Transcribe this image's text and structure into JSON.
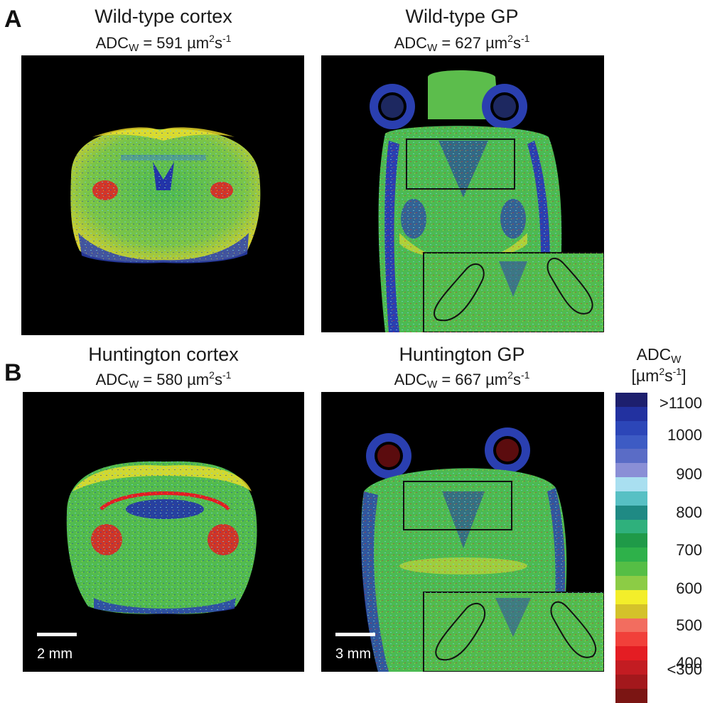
{
  "figure": {
    "panel_a_letter": "A",
    "panel_b_letter": "B",
    "panels": [
      {
        "title": "Wild-type cortex",
        "adc_prefix": "ADC",
        "adc_sub": "W",
        "adc_mid": " = 591 µm",
        "adc_sup1": "2",
        "adc_s": "s",
        "adc_sup2": "-1"
      },
      {
        "title": "Wild-type GP",
        "adc_prefix": "ADC",
        "adc_sub": "W",
        "adc_mid": " = 627 µm",
        "adc_sup1": "2",
        "adc_s": "s",
        "adc_sup2": "-1"
      },
      {
        "title": "Huntington cortex",
        "adc_prefix": "ADC",
        "adc_sub": "W",
        "adc_mid": " = 580 µm",
        "adc_sup1": "2",
        "adc_s": "s",
        "adc_sup2": "-1"
      },
      {
        "title": "Huntington GP",
        "adc_prefix": "ADC",
        "adc_sub": "W",
        "adc_mid": " = 667 µm",
        "adc_sup1": "2",
        "adc_s": "s",
        "adc_sup2": "-1"
      }
    ],
    "scalebars": {
      "cortex": "2 mm",
      "gp": "3 mm"
    },
    "colorbar": {
      "title_prefix": "ADC",
      "title_sub": "W",
      "unit_open": "[µm",
      "unit_sup1": "2",
      "unit_s": "s",
      "unit_sup2": "-1",
      "unit_close": "]",
      "ticks": [
        ">1100",
        "1000",
        "900",
        "800",
        "700",
        "600",
        "500",
        "400",
        "<300"
      ],
      "colors": [
        "#1d1f6e",
        "#2231a0",
        "#2c46b8",
        "#3d5bc4",
        "#5a6cc6",
        "#8a8fd6",
        "#a9dff0",
        "#57c0c4",
        "#1f8a84",
        "#2fb07c",
        "#1f9a48",
        "#2eb14a",
        "#55be45",
        "#8ccc45",
        "#f3ee2a",
        "#d4c22a",
        "#f26d5f",
        "#f1403a",
        "#e41d23",
        "#c31c22",
        "#a3181c",
        "#7b1513"
      ]
    },
    "colors": {
      "background": "#ffffff",
      "panel": "#000000"
    }
  }
}
